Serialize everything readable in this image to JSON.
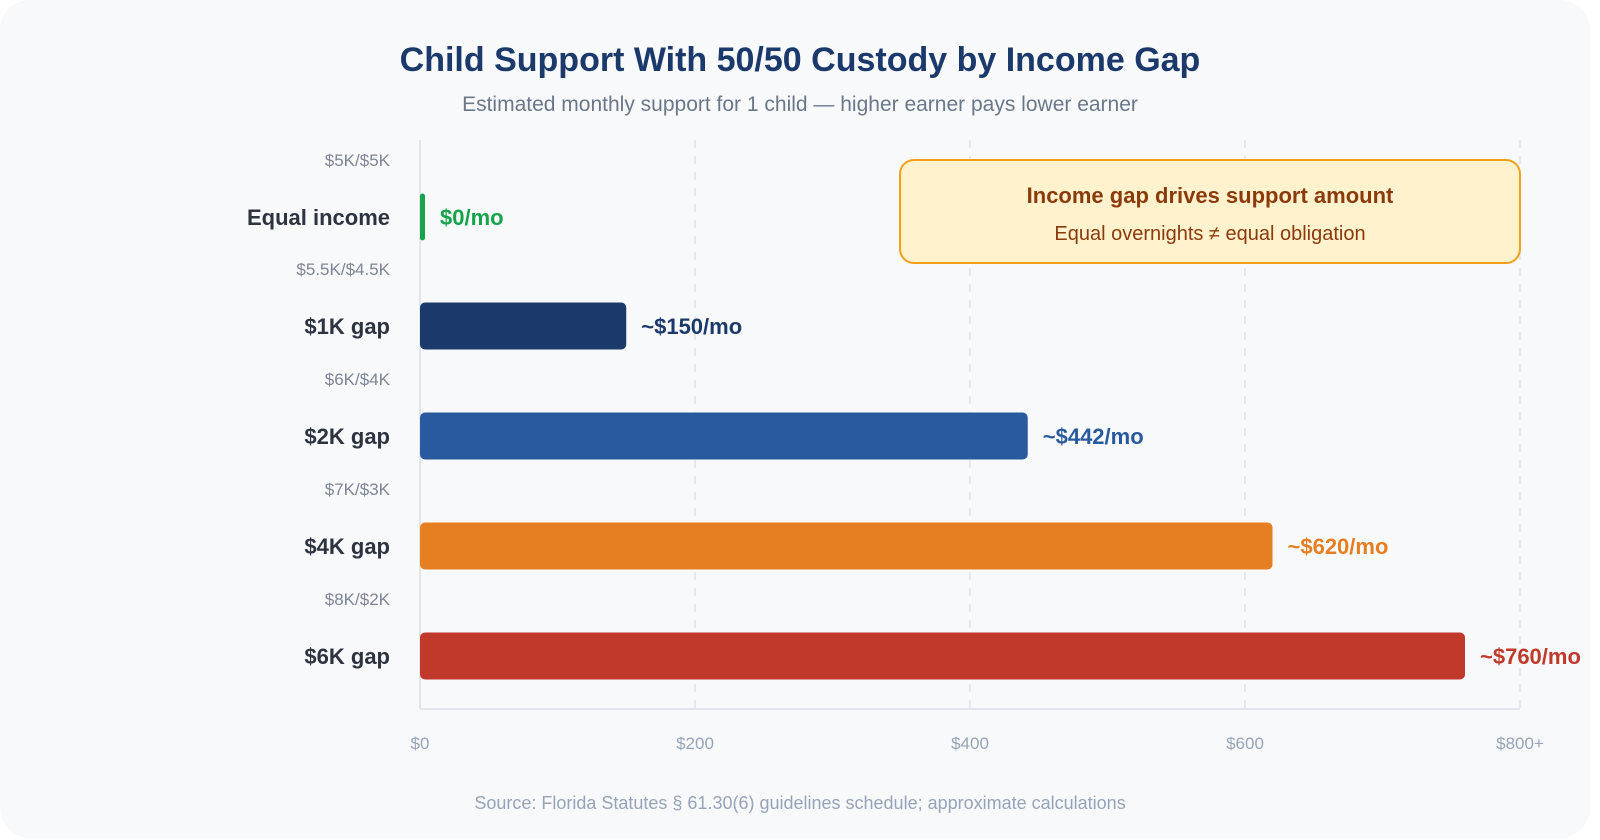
{
  "chart_data": {
    "type": "bar",
    "orientation": "horizontal",
    "title": "Child Support With 50/50 Custody by Income Gap",
    "subtitle": "Estimated monthly support for 1 child — higher earner pays lower earner",
    "categories": [
      "Equal income",
      "$1K gap",
      "$2K gap",
      "$4K gap",
      "$6K gap"
    ],
    "income_splits": [
      "$5K/$5K",
      "$5.5K/$4.5K",
      "$6K/$4K",
      "$7K/$3K",
      "$8K/$2K"
    ],
    "values": [
      0,
      150,
      442,
      620,
      760
    ],
    "value_labels": [
      "$0/mo",
      "~$150/mo",
      "~$442/mo",
      "~$620/mo",
      "~$760/mo"
    ],
    "colors": [
      "#16a34a",
      "#1b3a6b",
      "#2a5a9e",
      "#e67e22",
      "#c0392b"
    ],
    "xlim": [
      0,
      800
    ],
    "xticks": [
      0,
      200,
      400,
      600,
      800
    ],
    "xtick_labels": [
      "$0",
      "$200",
      "$400",
      "$600",
      "$800+"
    ],
    "grid": true,
    "callout": {
      "title": "Income gap drives support amount",
      "text": "Equal overnights ≠ equal obligation"
    },
    "source": "Source: Florida Statutes § 61.30(6) guidelines schedule; approximate calculations"
  }
}
